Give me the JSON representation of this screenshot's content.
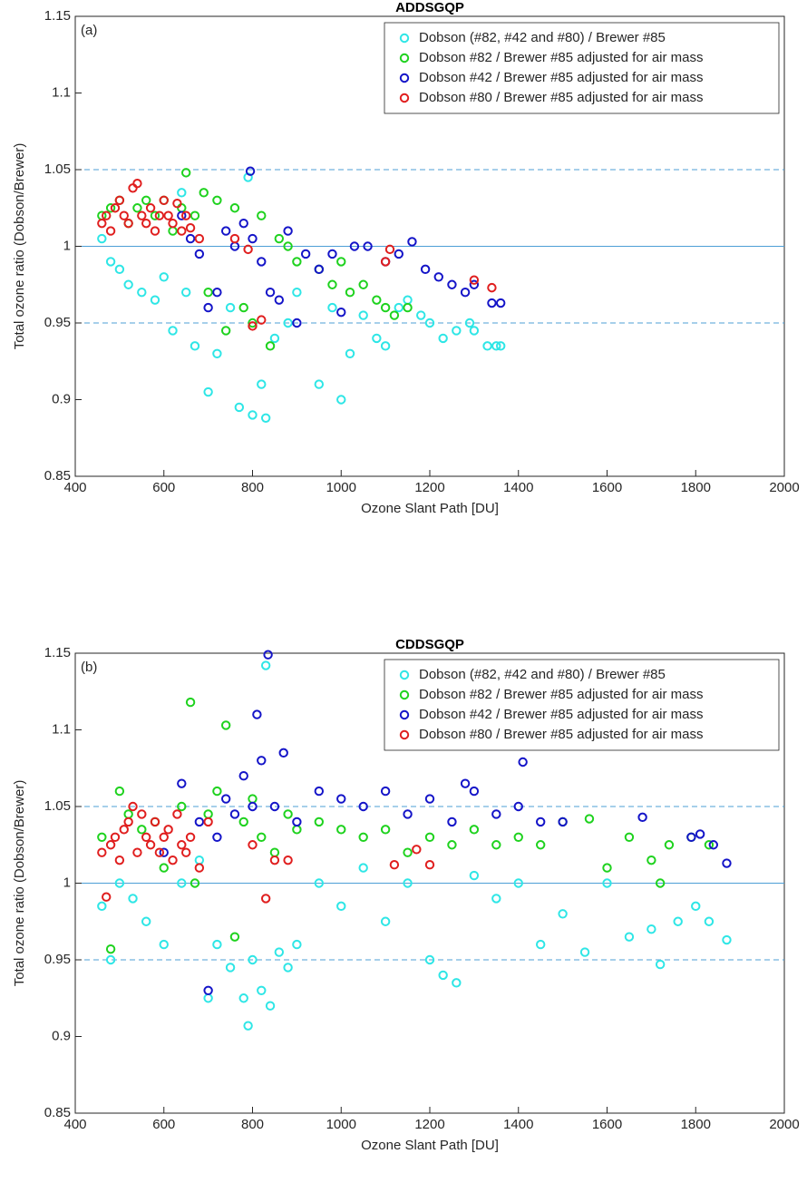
{
  "chart_data": [
    {
      "type": "scatter",
      "title": "ADDSGQP",
      "panel_label": "(a)",
      "xlabel": "Ozone Slant Path [DU]",
      "ylabel": "Total ozone ratio (Dobson/Brewer)",
      "xlim": [
        400,
        2000
      ],
      "xticks": [
        400,
        600,
        800,
        1000,
        1200,
        1400,
        1600,
        1800,
        2000
      ],
      "ylim": [
        0.85,
        1.15
      ],
      "yticks": [
        0.85,
        0.9,
        0.95,
        1,
        1.05,
        1.1,
        1.15
      ],
      "reference_lines": [
        {
          "value": 1.05,
          "dashed": true
        },
        {
          "value": 1,
          "dashed": false
        },
        {
          "value": 0.95,
          "dashed": true
        }
      ],
      "legend": "upper right",
      "series": [
        {
          "name": "Dobson (#82, #42 and #80) / Brewer #85",
          "color": "#2ee6e6",
          "x": [
            460,
            480,
            500,
            520,
            550,
            580,
            600,
            620,
            640,
            650,
            670,
            700,
            720,
            750,
            770,
            790,
            800,
            820,
            830,
            850,
            880,
            900,
            950,
            980,
            1000,
            1020,
            1050,
            1080,
            1100,
            1130,
            1150,
            1180,
            1200,
            1230,
            1260,
            1290,
            1300,
            1330,
            1350,
            1360
          ],
          "values": [
            1.005,
            0.99,
            0.985,
            0.975,
            0.97,
            0.965,
            0.98,
            0.945,
            1.035,
            0.97,
            0.935,
            0.905,
            0.93,
            0.96,
            0.895,
            1.045,
            0.89,
            0.91,
            0.888,
            0.94,
            0.95,
            0.97,
            0.91,
            0.96,
            0.9,
            0.93,
            0.955,
            0.94,
            0.935,
            0.96,
            0.965,
            0.955,
            0.95,
            0.94,
            0.945,
            0.95,
            0.945,
            0.935,
            0.935,
            0.935
          ]
        },
        {
          "name": "Dobson #82 / Brewer #85 adjusted for air mass",
          "color": "#1ed21e",
          "x": [
            460,
            480,
            500,
            520,
            540,
            560,
            580,
            600,
            620,
            640,
            650,
            670,
            690,
            700,
            720,
            740,
            760,
            780,
            800,
            820,
            840,
            860,
            880,
            900,
            950,
            980,
            1000,
            1020,
            1050,
            1080,
            1100,
            1120,
            1150
          ],
          "values": [
            1.02,
            1.025,
            1.03,
            1.015,
            1.025,
            1.03,
            1.02,
            1.03,
            1.01,
            1.025,
            1.048,
            1.02,
            1.035,
            0.97,
            1.03,
            0.945,
            1.025,
            0.96,
            0.95,
            1.02,
            0.935,
            1.005,
            1.0,
            0.99,
            0.985,
            0.975,
            0.99,
            0.97,
            0.975,
            0.965,
            0.96,
            0.955,
            0.96
          ]
        },
        {
          "name": "Dobson #42 / Brewer #85 adjusted for air mass",
          "color": "#1414c8",
          "x": [
            640,
            660,
            680,
            700,
            720,
            740,
            760,
            780,
            795,
            800,
            820,
            840,
            860,
            880,
            900,
            920,
            950,
            980,
            1000,
            1030,
            1060,
            1100,
            1130,
            1160,
            1190,
            1220,
            1250,
            1280,
            1300,
            1340,
            1360
          ],
          "values": [
            1.02,
            1.005,
            0.995,
            0.96,
            0.97,
            1.01,
            1.0,
            1.015,
            1.049,
            1.005,
            0.99,
            0.97,
            0.965,
            1.01,
            0.95,
            0.995,
            0.985,
            0.995,
            0.957,
            1.0,
            1.0,
            0.99,
            0.995,
            1.003,
            0.985,
            0.98,
            0.975,
            0.97,
            0.975,
            0.963,
            0.963
          ]
        },
        {
          "name": "Dobson #80 / Brewer #85 adjusted for air mass",
          "color": "#e01e1e",
          "x": [
            460,
            470,
            480,
            490,
            500,
            510,
            520,
            530,
            540,
            550,
            560,
            570,
            580,
            590,
            600,
            610,
            620,
            630,
            640,
            650,
            660,
            680,
            760,
            790,
            800,
            820,
            1100,
            1110,
            1300,
            1340
          ],
          "values": [
            1.015,
            1.02,
            1.01,
            1.025,
            1.03,
            1.02,
            1.015,
            1.038,
            1.041,
            1.02,
            1.015,
            1.025,
            1.01,
            1.02,
            1.03,
            1.02,
            1.015,
            1.028,
            1.01,
            1.02,
            1.012,
            1.005,
            1.005,
            0.998,
            0.948,
            0.952,
            0.99,
            0.998,
            0.978,
            0.973
          ]
        }
      ]
    },
    {
      "type": "scatter",
      "title": "CDDSGQP",
      "panel_label": "(b)",
      "xlabel": "Ozone Slant Path [DU]",
      "ylabel": "Total ozone ratio (Dobson/Brewer)",
      "xlim": [
        400,
        2000
      ],
      "xticks": [
        400,
        600,
        800,
        1000,
        1200,
        1400,
        1600,
        1800,
        2000
      ],
      "ylim": [
        0.85,
        1.15
      ],
      "yticks": [
        0.85,
        0.9,
        0.95,
        1,
        1.05,
        1.1,
        1.15
      ],
      "reference_lines": [
        {
          "value": 1.05,
          "dashed": true
        },
        {
          "value": 1,
          "dashed": false
        },
        {
          "value": 0.95,
          "dashed": true
        }
      ],
      "legend": "upper right",
      "series": [
        {
          "name": "Dobson (#82, #42 and #80) / Brewer #85",
          "color": "#2ee6e6",
          "x": [
            460,
            480,
            500,
            530,
            560,
            600,
            640,
            680,
            700,
            720,
            750,
            780,
            790,
            800,
            820,
            830,
            840,
            860,
            880,
            900,
            950,
            1000,
            1050,
            1100,
            1150,
            1200,
            1230,
            1260,
            1300,
            1350,
            1400,
            1450,
            1500,
            1550,
            1600,
            1650,
            1700,
            1720,
            1760,
            1800,
            1830,
            1870
          ],
          "values": [
            0.985,
            0.95,
            1.0,
            0.99,
            0.975,
            0.96,
            1.0,
            1.015,
            0.925,
            0.96,
            0.945,
            0.925,
            0.907,
            0.95,
            0.93,
            1.142,
            0.92,
            0.955,
            0.945,
            0.96,
            1.0,
            0.985,
            1.01,
            0.975,
            1.0,
            0.95,
            0.94,
            0.935,
            1.005,
            0.99,
            1.0,
            0.96,
            0.98,
            0.955,
            1.0,
            0.965,
            0.97,
            0.947,
            0.975,
            0.985,
            0.975,
            0.963
          ]
        },
        {
          "name": "Dobson #82 / Brewer #85 adjusted for air mass",
          "color": "#1ed21e",
          "x": [
            460,
            480,
            500,
            520,
            550,
            580,
            600,
            640,
            660,
            670,
            700,
            720,
            740,
            760,
            780,
            800,
            820,
            850,
            880,
            900,
            950,
            1000,
            1050,
            1100,
            1150,
            1200,
            1250,
            1300,
            1350,
            1400,
            1450,
            1500,
            1560,
            1600,
            1650,
            1700,
            1720,
            1740,
            1790,
            1830
          ],
          "values": [
            1.03,
            0.957,
            1.06,
            1.045,
            1.035,
            1.04,
            1.01,
            1.05,
            1.118,
            1.0,
            1.045,
            1.06,
            1.103,
            0.965,
            1.04,
            1.055,
            1.03,
            1.02,
            1.045,
            1.035,
            1.04,
            1.035,
            1.03,
            1.035,
            1.02,
            1.03,
            1.025,
            1.035,
            1.025,
            1.03,
            1.025,
            1.04,
            1.042,
            1.01,
            1.03,
            1.015,
            1.0,
            1.025,
            1.03,
            1.025
          ]
        },
        {
          "name": "Dobson #42 / Brewer #85 adjusted for air mass",
          "color": "#1414c8",
          "x": [
            600,
            640,
            680,
            700,
            720,
            740,
            760,
            780,
            800,
            810,
            820,
            835,
            850,
            870,
            900,
            950,
            1000,
            1050,
            1100,
            1150,
            1200,
            1250,
            1280,
            1300,
            1350,
            1400,
            1410,
            1450,
            1500,
            1680,
            1790,
            1810,
            1840,
            1870
          ],
          "values": [
            1.02,
            1.065,
            1.04,
            0.93,
            1.03,
            1.055,
            1.045,
            1.07,
            1.05,
            1.11,
            1.08,
            1.149,
            1.05,
            1.085,
            1.04,
            1.06,
            1.055,
            1.05,
            1.06,
            1.045,
            1.055,
            1.04,
            1.065,
            1.06,
            1.045,
            1.05,
            1.079,
            1.04,
            1.04,
            1.043,
            1.03,
            1.032,
            1.025,
            1.013
          ]
        },
        {
          "name": "Dobson #80 / Brewer #85 adjusted for air mass",
          "color": "#e01e1e",
          "x": [
            460,
            470,
            480,
            490,
            500,
            510,
            520,
            530,
            540,
            550,
            560,
            570,
            580,
            590,
            600,
            610,
            620,
            630,
            640,
            650,
            660,
            680,
            700,
            800,
            830,
            850,
            880,
            1120,
            1170,
            1200
          ],
          "values": [
            1.02,
            0.991,
            1.025,
            1.03,
            1.015,
            1.035,
            1.04,
            1.05,
            1.02,
            1.045,
            1.03,
            1.025,
            1.04,
            1.02,
            1.03,
            1.035,
            1.015,
            1.045,
            1.025,
            1.02,
            1.03,
            1.01,
            1.04,
            1.025,
            0.99,
            1.015,
            1.015,
            1.012,
            1.022,
            1.012
          ]
        }
      ]
    }
  ]
}
